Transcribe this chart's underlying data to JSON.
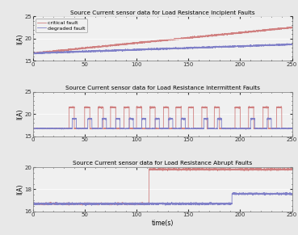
{
  "title1": "Source Current sensor data for Load Resistance Incipient Faults",
  "title2": "Source Current sensor data for Load Resistance Intermittent Faults",
  "title3": "Source Current sensor data for Load Resistance Abrupt Faults",
  "ylabel": "I(A)",
  "xlabel": "time(s)",
  "xlim": [
    0,
    250
  ],
  "color_critical": "#d08080",
  "color_degraded": "#8080c8",
  "legend_labels": [
    "critical fault",
    "degraded fault"
  ],
  "plot1_ylim": [
    15,
    25
  ],
  "plot2_ylim": [
    15,
    25
  ],
  "plot3_ylim": [
    16,
    20
  ],
  "plot1_yticks": [
    15,
    20,
    25
  ],
  "plot2_yticks": [
    15,
    20,
    25
  ],
  "plot3_yticks": [
    16,
    18,
    20
  ],
  "xticks": [
    0,
    50,
    100,
    150,
    200,
    250
  ],
  "bg_color": "#f0f0f0",
  "fig_bg": "#e8e8e8"
}
